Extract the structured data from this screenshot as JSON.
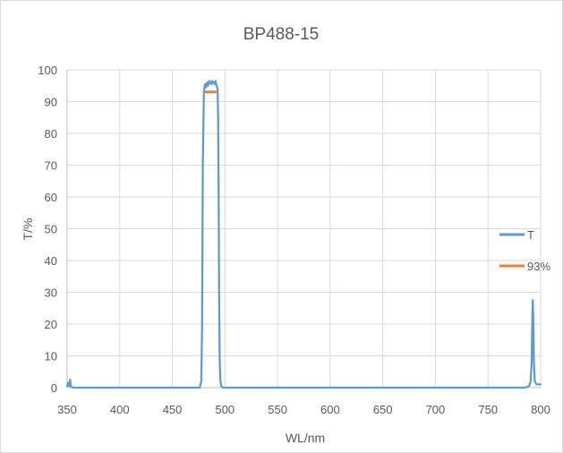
{
  "chart_data": {
    "type": "line",
    "title": "BP488-15",
    "xlabel": "WL/nm",
    "ylabel": "T/%",
    "xlim": [
      350,
      800
    ],
    "ylim": [
      0,
      100
    ],
    "x_ticks": [
      350,
      400,
      450,
      500,
      550,
      600,
      650,
      700,
      750,
      800
    ],
    "y_ticks": [
      0,
      10,
      20,
      30,
      40,
      50,
      60,
      70,
      80,
      90,
      100
    ],
    "grid": true,
    "legend_position": "right",
    "series": [
      {
        "name": "T",
        "color": "#5b9bd5",
        "x": [
          350,
          351,
          352,
          352.8,
          353.5,
          354.5,
          356,
          400,
          450,
          476,
          477.5,
          478.3,
          479,
          480,
          481,
          482,
          483,
          484,
          485,
          486,
          487,
          488,
          489,
          490,
          491,
          492,
          493,
          493.5,
          494,
          494.5,
          495,
          495.7,
          496.5,
          498,
          500,
          550,
          600,
          650,
          700,
          750,
          785,
          789,
          790.5,
          791.5,
          792,
          792.5,
          793,
          793.6,
          794.5,
          796,
          798,
          800
        ],
        "y": [
          0.5,
          1.5,
          0.5,
          2.5,
          0.4,
          0.2,
          0,
          0,
          0,
          0,
          2,
          20,
          70,
          93,
          95.5,
          94.5,
          96,
          95,
          96.5,
          96,
          95.5,
          96.5,
          96,
          95.5,
          96.5,
          95,
          94,
          85,
          60,
          25,
          8,
          2,
          0.5,
          0,
          0,
          0,
          0,
          0,
          0,
          0,
          0,
          0.5,
          2,
          8,
          20,
          27.5,
          22,
          8,
          2,
          1,
          1,
          1
        ]
      },
      {
        "name": "93%",
        "color": "#ed7d31",
        "x": [
          481,
          491
        ],
        "y": [
          93,
          93
        ]
      }
    ]
  }
}
